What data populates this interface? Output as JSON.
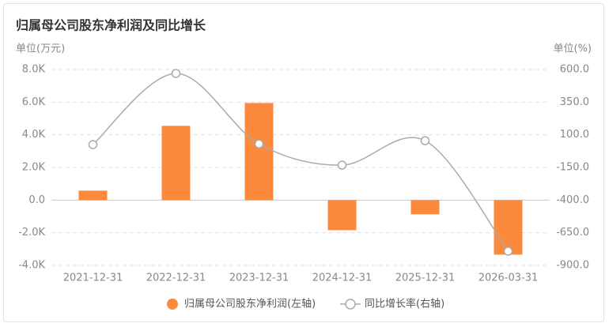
{
  "chart_data": {
    "type": "bar+line",
    "title": "归属母公司股东净利润及同比增长",
    "y_unit": "单位(万元)",
    "y2_unit": "单位(%)",
    "categories": [
      "2021-12-31",
      "2022-12-31",
      "2023-12-31",
      "2024-12-31",
      "2025-12-31",
      "2026-03-31"
    ],
    "series": [
      {
        "name": "归属母公司股东净利润(左轴)",
        "type": "bar",
        "color": "#fb8a3c",
        "values": [
          580,
          4550,
          5950,
          -1840,
          -870,
          -3340
        ]
      },
      {
        "name": "同比增长率(右轴)",
        "type": "line",
        "axis": "y2",
        "color": "#aaaaaa",
        "values": [
          25,
          570,
          30,
          -132,
          55,
          -791
        ]
      }
    ],
    "ylim": [
      -4000,
      8000
    ],
    "yticks": [
      {
        "value": -4000,
        "label": "-4.0K"
      },
      {
        "value": -2000,
        "label": "-2.0K"
      },
      {
        "value": 0,
        "label": "0.0"
      },
      {
        "value": 2000,
        "label": "2.0K"
      },
      {
        "value": 4000,
        "label": "4.0K"
      },
      {
        "value": 6000,
        "label": "6.0K"
      },
      {
        "value": 8000,
        "label": "8.0K"
      }
    ],
    "y2lim": [
      -900,
      600
    ],
    "y2ticks": [
      {
        "value": -900,
        "label": "-900.0"
      },
      {
        "value": -650,
        "label": "-650.0"
      },
      {
        "value": -400,
        "label": "-400.0"
      },
      {
        "value": -150,
        "label": "-150.0"
      },
      {
        "value": 100,
        "label": "100.0"
      },
      {
        "value": 350,
        "label": "350.0"
      },
      {
        "value": 600,
        "label": "600.0"
      }
    ],
    "grid": true
  }
}
